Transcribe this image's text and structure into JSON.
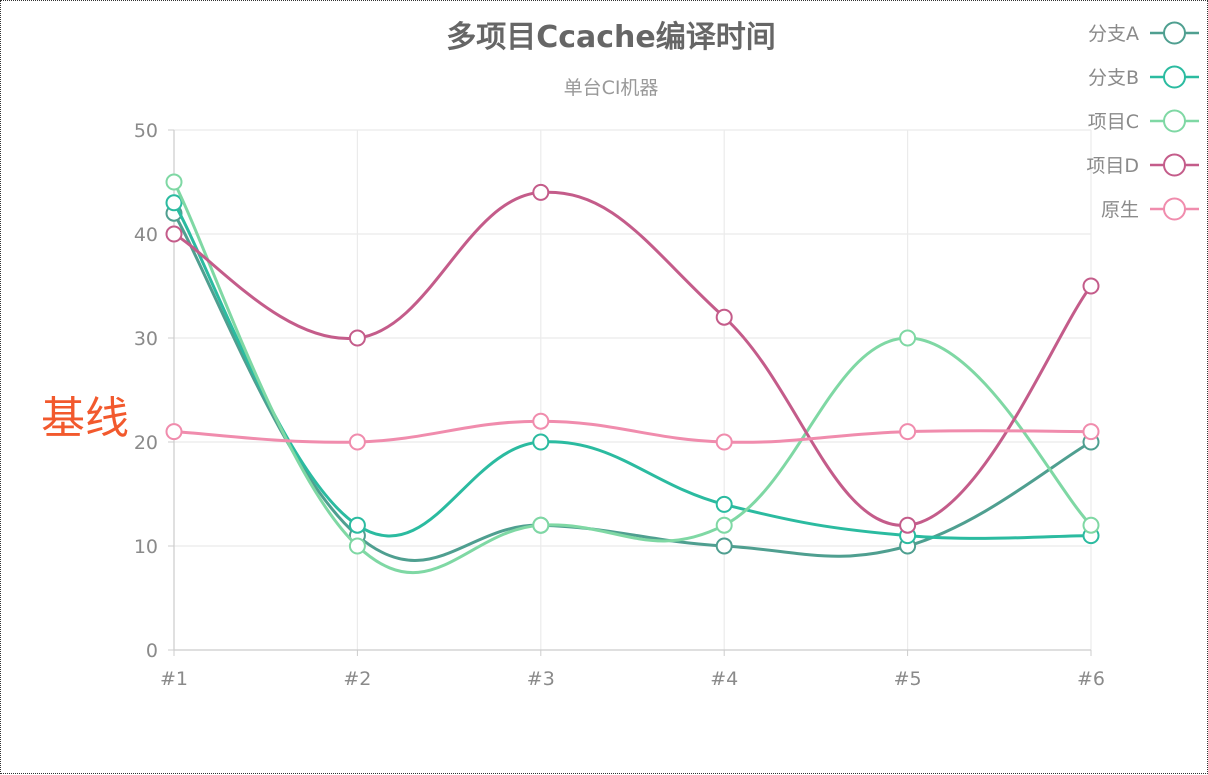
{
  "chart_data": {
    "type": "line",
    "title": "多项目Ccache编译时间",
    "subtitle": "单台CI机器",
    "annotation": {
      "text": "基线",
      "color": "#f2592d"
    },
    "x": [
      "#1",
      "#2",
      "#3",
      "#4",
      "#5",
      "#6"
    ],
    "ylim": [
      0,
      50
    ],
    "yticks": [
      0,
      10,
      20,
      30,
      40,
      50
    ],
    "grid": true,
    "smooth": true,
    "legend_position": "top-right",
    "series": [
      {
        "name": "分支A",
        "color": "#4f9f90",
        "values": [
          42,
          11,
          12,
          10,
          10,
          20
        ]
      },
      {
        "name": "分支B",
        "color": "#2bbba0",
        "values": [
          43,
          12,
          20,
          14,
          11,
          11
        ]
      },
      {
        "name": "项目C",
        "color": "#7fd8a4",
        "values": [
          45,
          10,
          12,
          12,
          30,
          12
        ]
      },
      {
        "name": "项目D",
        "color": "#c45c8a",
        "values": [
          40,
          30,
          44,
          32,
          12,
          35
        ]
      },
      {
        "name": "原生",
        "color": "#f08cad",
        "values": [
          21,
          20,
          22,
          20,
          21,
          21
        ]
      }
    ]
  }
}
